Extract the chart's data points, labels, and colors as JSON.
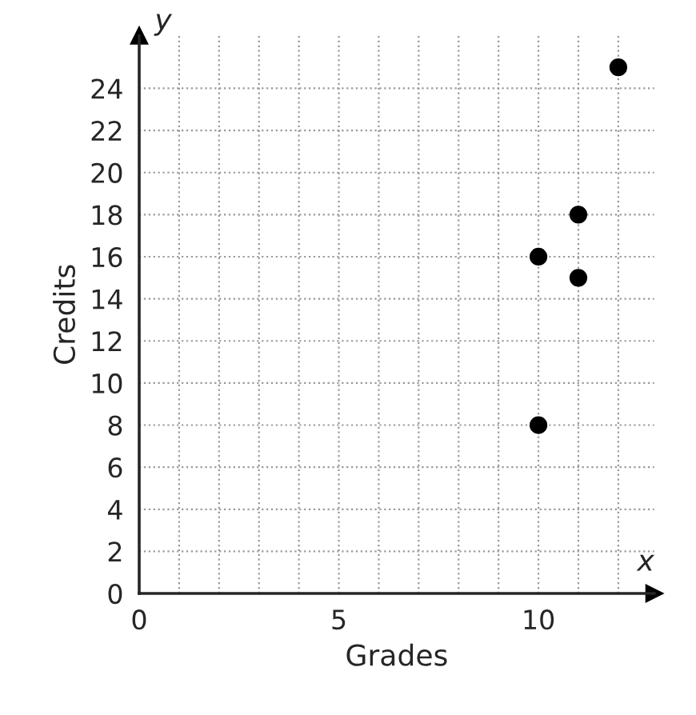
{
  "chart_data": {
    "type": "scatter",
    "xlabel": "Grades",
    "ylabel": "Credits",
    "annotations": [
      "x",
      "y"
    ],
    "x": [
      10,
      10,
      11,
      11,
      12
    ],
    "values": [
      16,
      8,
      18,
      15,
      25
    ],
    "color": "#000000",
    "marker": "circle",
    "grid": true,
    "xlim": [
      0,
      12.9
    ],
    "ylim": [
      0,
      26.5
    ],
    "xticks": [
      0,
      {
        "value": 1,
        "label": null
      },
      {
        "value": 2,
        "label": null
      },
      {
        "value": 3,
        "label": null
      },
      {
        "value": 4,
        "label": null
      },
      5,
      {
        "value": 6,
        "label": null
      },
      {
        "value": 7,
        "label": null
      },
      {
        "value": 8,
        "label": null
      },
      {
        "value": 9,
        "label": null
      },
      10,
      {
        "value": 11,
        "label": null
      },
      {
        "value": 12,
        "label": null
      }
    ],
    "yticks": [
      0,
      2,
      4,
      6,
      8,
      10,
      12,
      14,
      16,
      18,
      20,
      22,
      24
    ]
  }
}
